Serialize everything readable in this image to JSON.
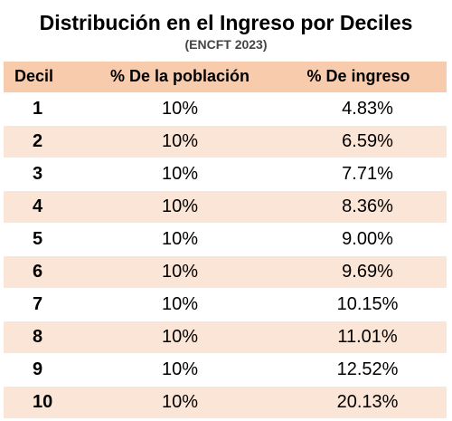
{
  "title": "Distribución en el Ingreso por Deciles",
  "subtitle": "(ENCFT 2023)",
  "colors": {
    "header_bg": "#f8cbad",
    "stripe_bg": "#fbe5d6"
  },
  "table": {
    "headers": [
      "Decil",
      "% De la población",
      "% De ingreso"
    ],
    "rows": [
      {
        "decil": "1",
        "poblacion": "10%",
        "ingreso": "4.83%"
      },
      {
        "decil": "2",
        "poblacion": "10%",
        "ingreso": "6.59%"
      },
      {
        "decil": "3",
        "poblacion": "10%",
        "ingreso": "7.71%"
      },
      {
        "decil": "4",
        "poblacion": "10%",
        "ingreso": "8.36%"
      },
      {
        "decil": "5",
        "poblacion": "10%",
        "ingreso": "9.00%"
      },
      {
        "decil": "6",
        "poblacion": "10%",
        "ingreso": "9.69%"
      },
      {
        "decil": "7",
        "poblacion": "10%",
        "ingreso": "10.15%"
      },
      {
        "decil": "8",
        "poblacion": "10%",
        "ingreso": "11.01%"
      },
      {
        "decil": "9",
        "poblacion": "10%",
        "ingreso": "12.52%"
      },
      {
        "decil": "10",
        "poblacion": "10%",
        "ingreso": "20.13%"
      }
    ]
  }
}
